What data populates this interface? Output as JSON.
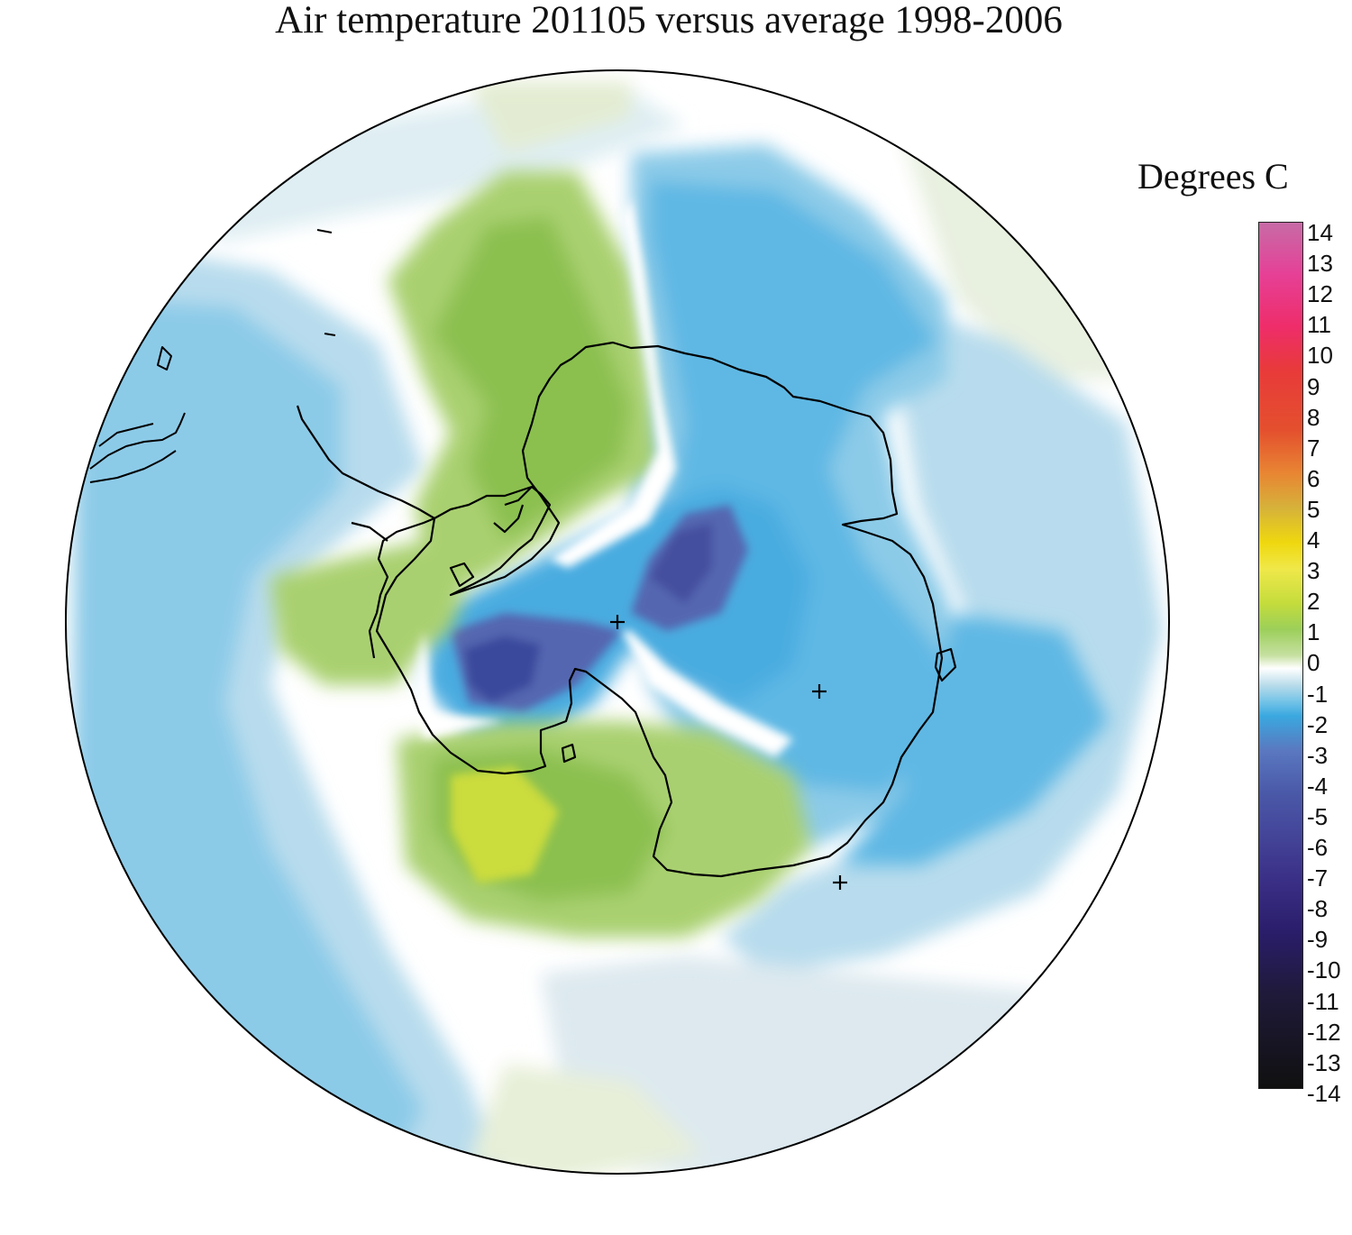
{
  "title": "Air temperature 201105 versus average 1998-2006",
  "colorbar": {
    "units_label": "Degrees C",
    "ticks": [
      "14",
      "13",
      "12",
      "11",
      "10",
      "9",
      "8",
      "7",
      "6",
      "5",
      "4",
      "3",
      "2",
      "1",
      "0",
      "-1",
      "-2",
      "-3",
      "-4",
      "-5",
      "-6",
      "-7",
      "-8",
      "-9",
      "-10",
      "-11",
      "-12",
      "-13",
      "-14"
    ],
    "range": [
      -14,
      14
    ]
  },
  "map": {
    "projection": "south-polar-stereographic",
    "region": "Antarctica",
    "pole_marker": "+",
    "station_markers": 3
  },
  "colors": {
    "blue_dark": "#3b4a9c",
    "blue": "#4aace0",
    "blue_light": "#8ccbe8",
    "blue_pale": "#d6eaf2",
    "green": "#8bc04f",
    "green_light": "#c2db8e",
    "yellow_green": "#cddc3c",
    "coast": "#000000"
  }
}
